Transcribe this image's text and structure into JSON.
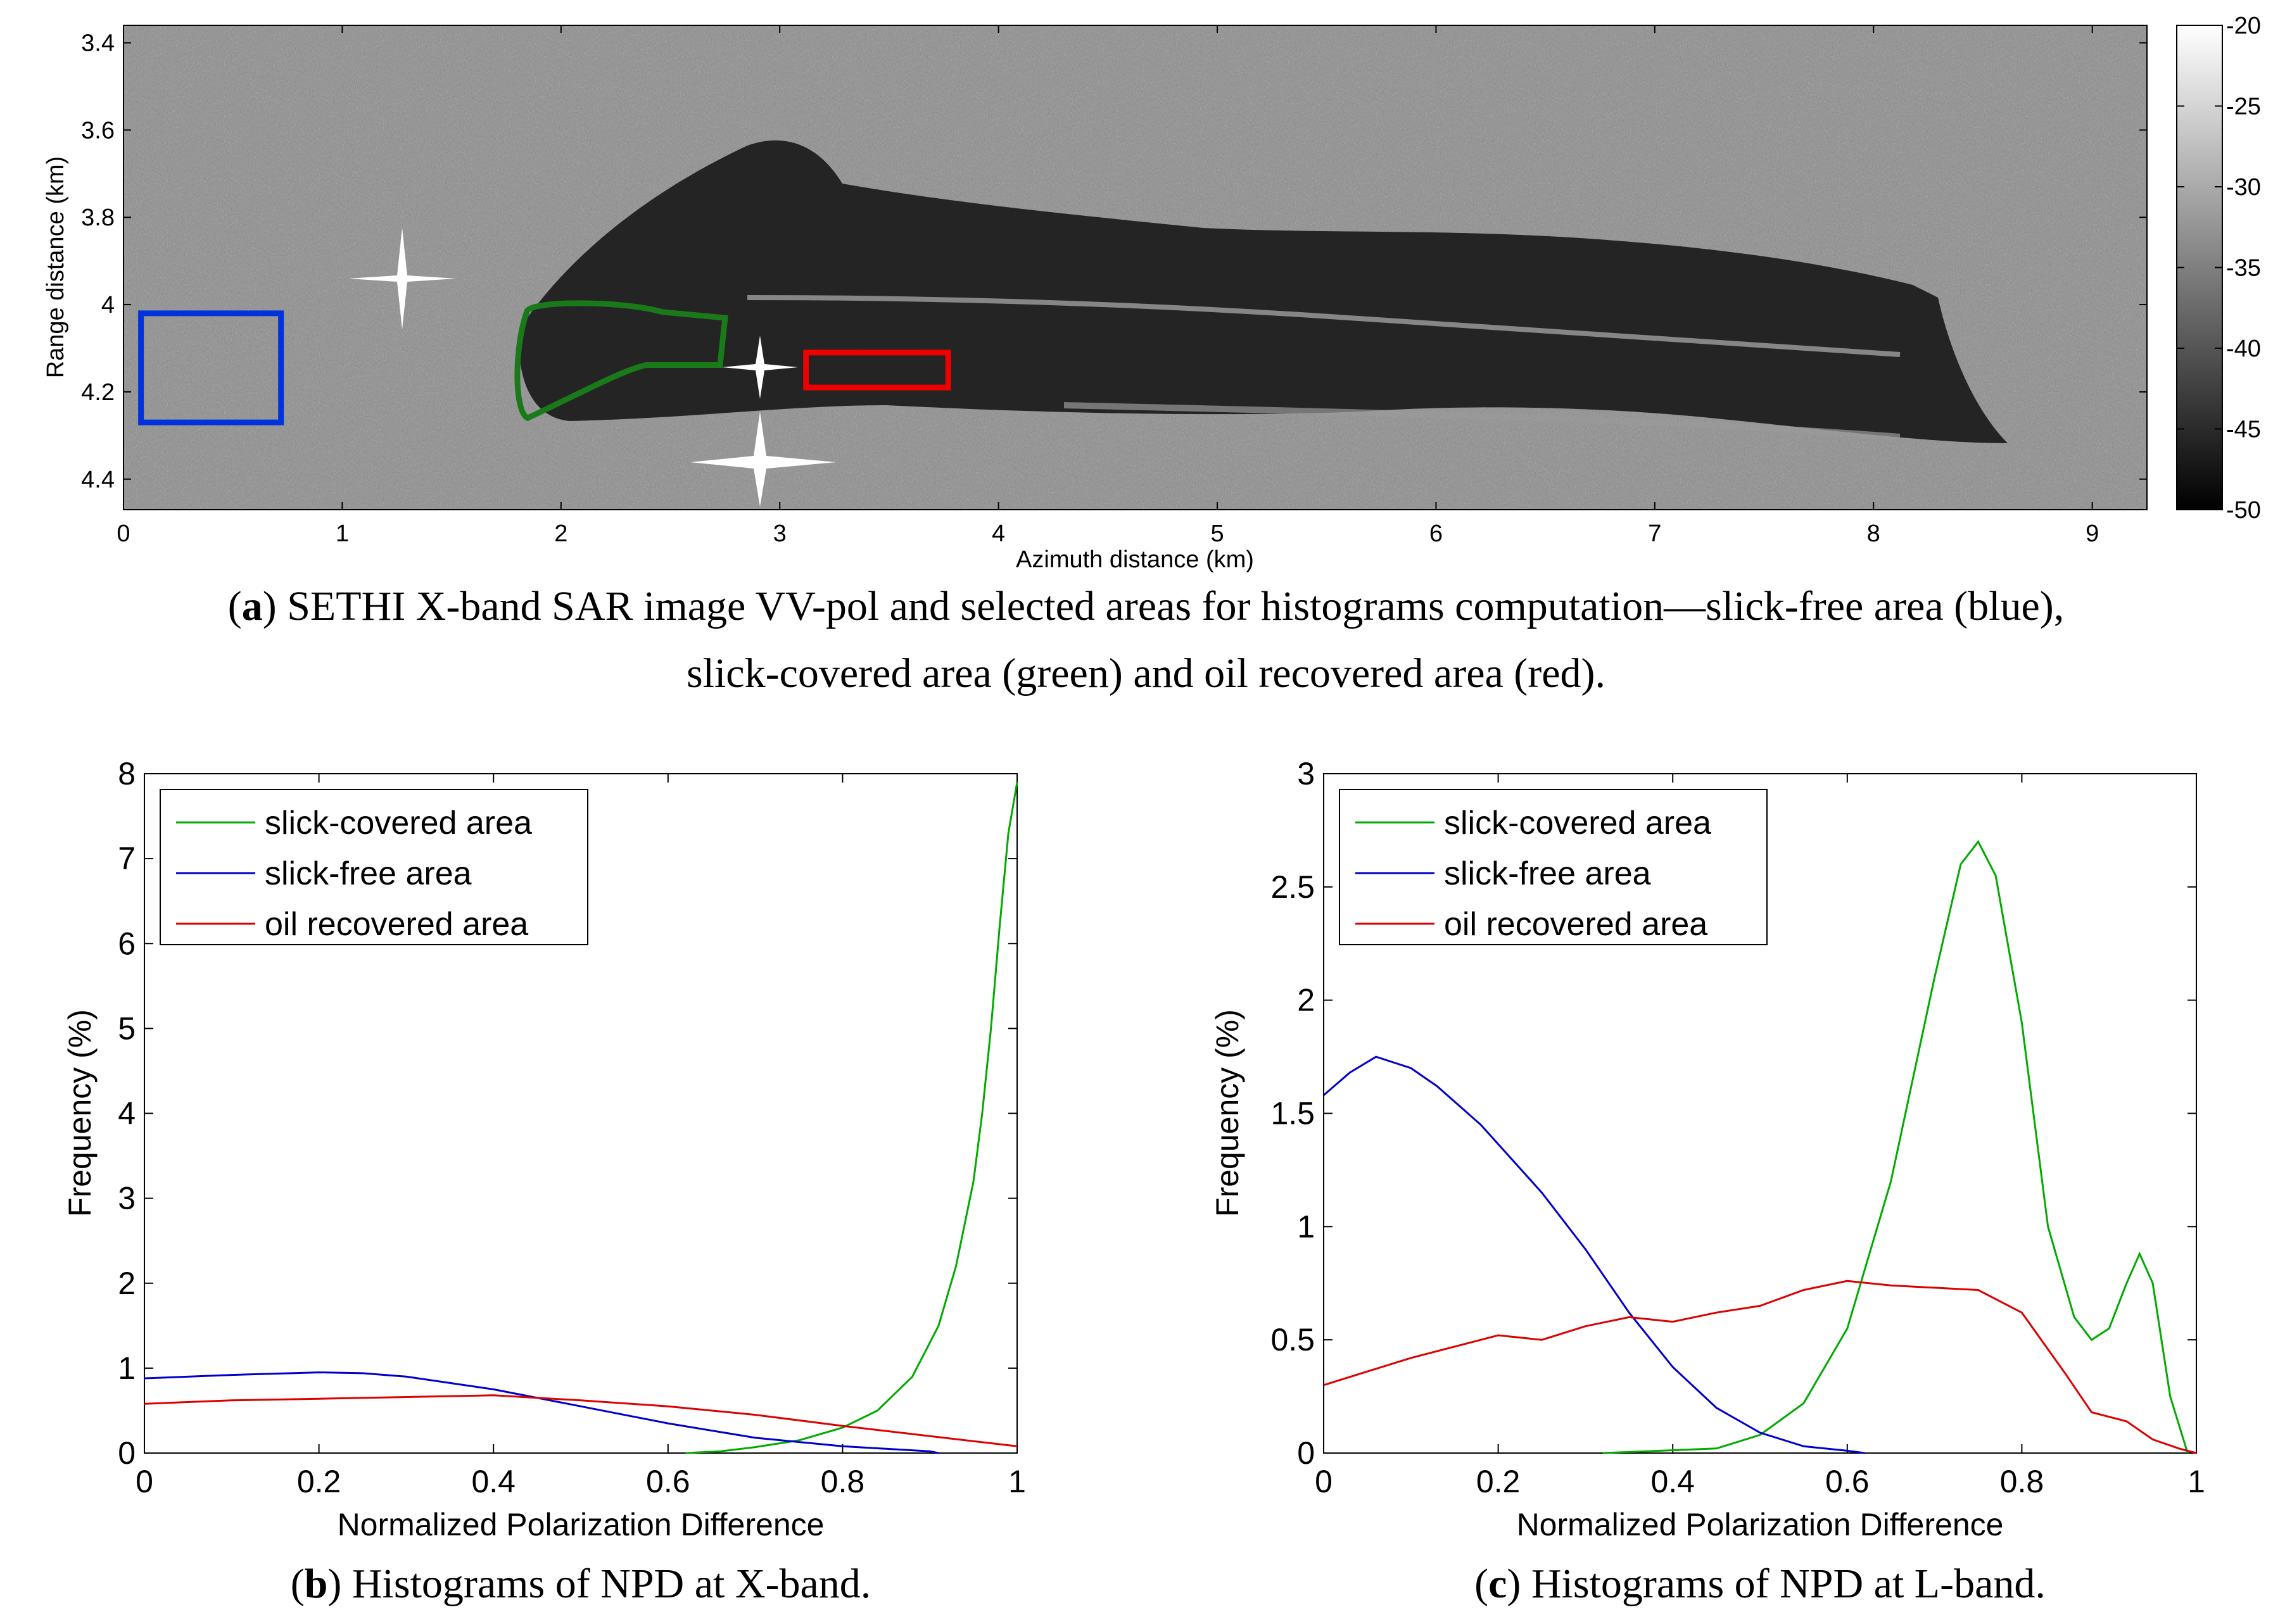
{
  "captions": {
    "a_label": "a",
    "a_text": ") SETHI X-band SAR image VV-pol and selected areas for histograms computation—slick-free area (blue),",
    "a_text2": "slick-covered area (green) and oil recovered area (red).",
    "b_label": "b",
    "b_text": ") Histograms of NPD at X-band.",
    "c_label": "c",
    "c_text": ") Histograms of NPD at L-band."
  },
  "colors": {
    "green": "#00aa00",
    "blue": "#0000cc",
    "red": "#dd0000",
    "box_green": "#1a7a1a",
    "box_blue": "#0033dd",
    "box_red": "#ee0000"
  },
  "chart_data": [
    {
      "type": "heatmap",
      "title": "SETHI X-band SAR image VV-pol",
      "xlabel": "Azimuth distance (km)",
      "ylabel": "Range distance (km)",
      "xlim": [
        0,
        9.25
      ],
      "ylim": [
        3.36,
        4.47
      ],
      "xticks": [
        "0",
        "1",
        "2",
        "3",
        "4",
        "5",
        "6",
        "7",
        "8",
        "9"
      ],
      "yticks": [
        "3.4",
        "3.6",
        "3.8",
        "4",
        "4.2",
        "4.4"
      ],
      "colorbar": {
        "range": [
          -50,
          -20
        ],
        "ticks": [
          "-20",
          "-25",
          "-30",
          "-35",
          "-40",
          "-45",
          "-50"
        ]
      },
      "regions": [
        {
          "name": "slick-free area",
          "color": "blue",
          "x": [
            0.08,
            0.72
          ],
          "y": [
            4.02,
            4.27
          ]
        },
        {
          "name": "slick-covered area",
          "color": "green",
          "x": [
            1.8,
            2.75
          ],
          "y": [
            3.99,
            4.26
          ]
        },
        {
          "name": "oil recovered area",
          "color": "red",
          "x": [
            3.12,
            3.77
          ],
          "y": [
            4.11,
            4.19
          ]
        }
      ]
    },
    {
      "type": "line",
      "title": "Histograms of NPD at X-band",
      "xlabel": "Normalized Polarization Difference",
      "ylabel": "Frequency (%)",
      "xlim": [
        0,
        1
      ],
      "ylim": [
        0,
        8
      ],
      "xticks": [
        "0",
        "0.2",
        "0.4",
        "0.6",
        "0.8",
        "1"
      ],
      "yticks": [
        "0",
        "1",
        "2",
        "3",
        "4",
        "5",
        "6",
        "7",
        "8"
      ],
      "legend": [
        "slick-covered area",
        "slick-free area",
        "oil recovered area"
      ],
      "series": [
        {
          "name": "slick-covered area",
          "color": "green",
          "x": [
            0.62,
            0.66,
            0.7,
            0.75,
            0.8,
            0.84,
            0.88,
            0.91,
            0.93,
            0.95,
            0.96,
            0.97,
            0.98,
            0.99,
            1.0
          ],
          "y": [
            0,
            0.02,
            0.07,
            0.15,
            0.3,
            0.5,
            0.9,
            1.5,
            2.2,
            3.2,
            4.0,
            5.0,
            6.2,
            7.3,
            7.9
          ]
        },
        {
          "name": "slick-free area",
          "color": "blue",
          "x": [
            0,
            0.1,
            0.2,
            0.25,
            0.3,
            0.4,
            0.5,
            0.6,
            0.7,
            0.8,
            0.9,
            0.91
          ],
          "y": [
            0.88,
            0.92,
            0.95,
            0.94,
            0.9,
            0.75,
            0.55,
            0.35,
            0.18,
            0.08,
            0.02,
            0
          ]
        },
        {
          "name": "oil recovered area",
          "color": "red",
          "x": [
            0,
            0.1,
            0.2,
            0.3,
            0.4,
            0.5,
            0.6,
            0.7,
            0.8,
            0.9,
            1.0
          ],
          "y": [
            0.58,
            0.62,
            0.64,
            0.66,
            0.68,
            0.62,
            0.55,
            0.45,
            0.32,
            0.2,
            0.08
          ]
        }
      ]
    },
    {
      "type": "line",
      "title": "Histograms of NPD at L-band",
      "xlabel": "Normalized Polarization Difference",
      "ylabel": "Frequency (%)",
      "xlim": [
        0,
        1
      ],
      "ylim": [
        0,
        3
      ],
      "xticks": [
        "0",
        "0.2",
        "0.4",
        "0.6",
        "0.8",
        "1"
      ],
      "yticks": [
        "0",
        "0.5",
        "1",
        "1.5",
        "2",
        "2.5",
        "3"
      ],
      "legend": [
        "slick-covered area",
        "slick-free area",
        "oil recovered area"
      ],
      "series": [
        {
          "name": "slick-covered area",
          "color": "green",
          "x": [
            0.32,
            0.45,
            0.5,
            0.55,
            0.6,
            0.65,
            0.7,
            0.73,
            0.75,
            0.77,
            0.8,
            0.83,
            0.86,
            0.88,
            0.9,
            0.92,
            0.935,
            0.95,
            0.97,
            0.99
          ],
          "y": [
            0,
            0.02,
            0.08,
            0.22,
            0.55,
            1.2,
            2.1,
            2.6,
            2.7,
            2.55,
            1.9,
            1.0,
            0.6,
            0.5,
            0.55,
            0.75,
            0.88,
            0.75,
            0.25,
            0
          ]
        },
        {
          "name": "slick-free area",
          "color": "blue",
          "x": [
            0,
            0.03,
            0.06,
            0.1,
            0.13,
            0.18,
            0.25,
            0.3,
            0.35,
            0.4,
            0.45,
            0.5,
            0.55,
            0.6,
            0.62
          ],
          "y": [
            1.58,
            1.68,
            1.75,
            1.7,
            1.62,
            1.45,
            1.15,
            0.9,
            0.62,
            0.38,
            0.2,
            0.09,
            0.03,
            0.01,
            0
          ]
        },
        {
          "name": "oil recovered area",
          "color": "red",
          "x": [
            0,
            0.05,
            0.1,
            0.15,
            0.2,
            0.25,
            0.3,
            0.35,
            0.4,
            0.45,
            0.5,
            0.55,
            0.6,
            0.65,
            0.7,
            0.75,
            0.8,
            0.85,
            0.88,
            0.92,
            0.95,
            0.98,
            1.0
          ],
          "y": [
            0.3,
            0.36,
            0.42,
            0.47,
            0.52,
            0.5,
            0.56,
            0.6,
            0.58,
            0.62,
            0.65,
            0.72,
            0.76,
            0.74,
            0.73,
            0.72,
            0.62,
            0.35,
            0.18,
            0.14,
            0.06,
            0.02,
            0
          ]
        }
      ]
    }
  ]
}
